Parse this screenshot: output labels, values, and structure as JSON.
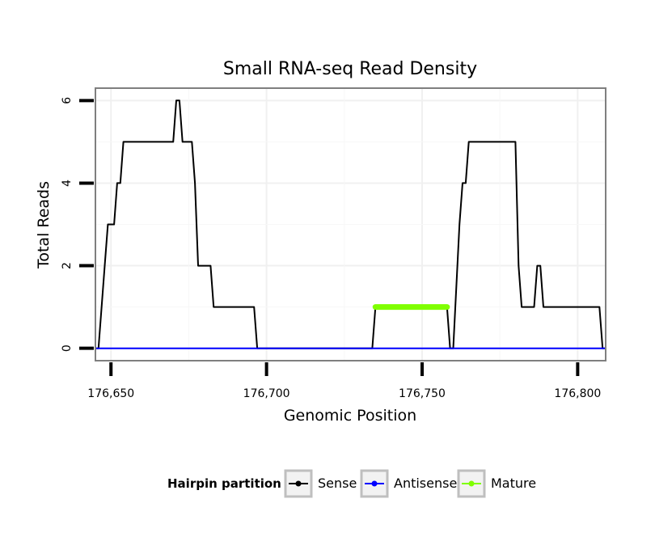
{
  "chart_data": {
    "type": "line",
    "title": "Small RNA-seq Read Density",
    "xlabel": "Genomic Position",
    "ylabel": "Total Reads",
    "xlim": [
      176645,
      176809
    ],
    "ylim": [
      -0.3,
      6.3
    ],
    "xticks": [
      176650,
      176700,
      176750,
      176800
    ],
    "xtick_labels": [
      "176,650",
      "176,700",
      "176,750",
      "176,800"
    ],
    "yticks": [
      0,
      2,
      4,
      6
    ],
    "ytick_labels": [
      "0",
      "2",
      "4",
      "6"
    ],
    "grid": true,
    "legend_title": "Hairpin partition",
    "legend_position": "bottom",
    "series": [
      {
        "name": "Sense",
        "color": "#000000",
        "x": [
          176645,
          176646,
          176648,
          176649,
          176651,
          176652,
          176653,
          176654,
          176655,
          176656,
          176670,
          176671,
          176672,
          176673,
          176676,
          176677,
          176678,
          176682,
          176683,
          176696,
          176697,
          176734,
          176735,
          176758,
          176759,
          176760,
          176762,
          176763,
          176764,
          176765,
          176766,
          176780,
          176781,
          176782,
          176786,
          176787,
          176788,
          176789,
          176807,
          176808,
          176809
        ],
        "y": [
          0,
          0,
          2,
          3,
          3,
          4,
          4,
          5,
          5,
          5,
          5,
          6,
          6,
          5,
          5,
          4,
          2,
          2,
          1,
          1,
          0,
          0,
          1,
          1,
          0,
          0,
          3,
          4,
          4,
          5,
          5,
          5,
          2,
          1,
          1,
          2,
          2,
          1,
          1,
          0,
          0
        ]
      },
      {
        "name": "Antisense",
        "color": "#0000ff",
        "x": [
          176645,
          176809
        ],
        "y": [
          0,
          0
        ]
      },
      {
        "name": "Mature",
        "color": "#7fff00",
        "x": [
          176735,
          176758
        ],
        "y": [
          1,
          1
        ]
      }
    ]
  }
}
